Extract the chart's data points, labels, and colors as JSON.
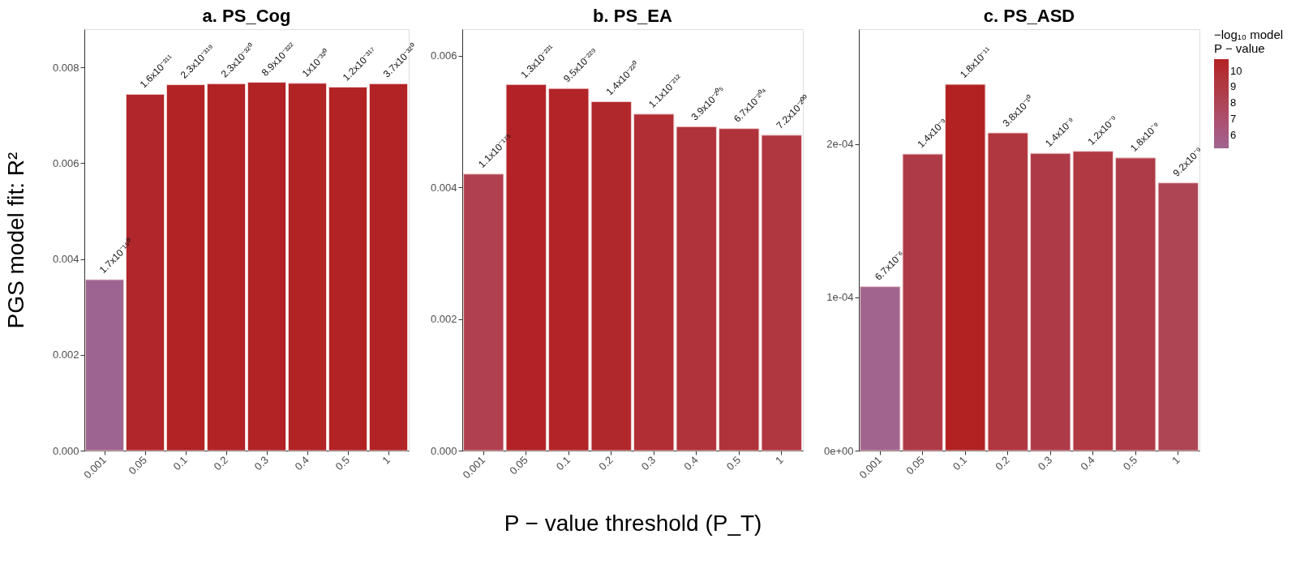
{
  "chart_data": [
    {
      "type": "bar",
      "title": "a. PS_Cog",
      "ylabel": "PGS model fit: R²",
      "categories": [
        "0.001",
        "0.05",
        "0.1",
        "0.2",
        "0.3",
        "0.4",
        "0.5",
        "1"
      ],
      "values": [
        0.00357,
        0.00744,
        0.00764,
        0.00766,
        0.00769,
        0.00767,
        0.00759,
        0.00766
      ],
      "colors": [
        "#9e6491",
        "#b0262a",
        "#b22325",
        "#b22325",
        "#b22325",
        "#b22325",
        "#b22325",
        "#b22325"
      ],
      "annotations": [
        {
          "text": "1.7x10⁻¹⁵⁰",
          "x": "0.001",
          "y": 0.00357
        },
        {
          "text": "1.6x10⁻³¹¹",
          "x": "0.05",
          "y": 0.00744
        },
        {
          "text": "2.3x10⁻³¹⁹",
          "x": "0.1",
          "y": 0.00764
        },
        {
          "text": "2.3x10⁻³²⁰",
          "x": "0.2",
          "y": 0.00766
        },
        {
          "text": "8.9x10⁻³²²",
          "x": "0.3",
          "y": 0.00769
        },
        {
          "text": "1x10⁻³²⁰",
          "x": "0.4",
          "y": 0.00767
        },
        {
          "text": "1.2x10⁻³¹⁷",
          "x": "0.5",
          "y": 0.00759
        },
        {
          "text": "3.7x10⁻³²⁰",
          "x": "1",
          "y": 0.00766
        }
      ],
      "ylim": [
        0,
        0.0088
      ],
      "yticks": [
        {
          "value": 0,
          "label": "0.000"
        },
        {
          "value": 0.002,
          "label": "0.002"
        },
        {
          "value": 0.004,
          "label": "0.004"
        },
        {
          "value": 0.006,
          "label": "0.006"
        },
        {
          "value": 0.008,
          "label": "0.008"
        }
      ],
      "grid": false
    },
    {
      "type": "bar",
      "title": "b. PS_EA",
      "xlabel": "P − value threshold (P_T)",
      "categories": [
        "0.001",
        "0.05",
        "0.1",
        "0.2",
        "0.3",
        "0.4",
        "0.5",
        "1"
      ],
      "values": [
        0.0042,
        0.00556,
        0.0055,
        0.0053,
        0.00511,
        0.00492,
        0.00489,
        0.00479
      ],
      "colors": [
        "#b04050",
        "#b22226",
        "#b22428",
        "#b0282c",
        "#b02e34",
        "#b0323a",
        "#b0323a",
        "#b03640"
      ],
      "annotations": [
        {
          "text": "1.1x10⁻¹⁷⁵",
          "x": "0.001",
          "y": 0.0042
        },
        {
          "text": "1.3x10⁻²³¹",
          "x": "0.05",
          "y": 0.00556
        },
        {
          "text": "9.5x10⁻²²⁹",
          "x": "0.1",
          "y": 0.0055
        },
        {
          "text": "1.4x10⁻²²⁰",
          "x": "0.2",
          "y": 0.0053
        },
        {
          "text": "1.1x10⁻²¹²",
          "x": "0.3",
          "y": 0.00511
        },
        {
          "text": "3.9x10⁻²⁰⁵",
          "x": "0.4",
          "y": 0.00492
        },
        {
          "text": "6.7x10⁻²⁰⁴",
          "x": "0.5",
          "y": 0.00489
        },
        {
          "text": "7.2x10⁻²⁰⁰",
          "x": "1",
          "y": 0.00479
        }
      ],
      "ylim": [
        0,
        0.0064
      ],
      "yticks": [
        {
          "value": 0,
          "label": "0.000"
        },
        {
          "value": 0.002,
          "label": "0.002"
        },
        {
          "value": 0.004,
          "label": "0.004"
        },
        {
          "value": 0.006,
          "label": "0.006"
        }
      ],
      "grid": false
    },
    {
      "type": "bar",
      "title": "c. PS_ASD",
      "categories": [
        "0.001",
        "0.05",
        "0.1",
        "0.2",
        "0.3",
        "0.4",
        "0.5",
        "1"
      ],
      "values": [
        0.000107,
        0.0001935,
        0.000239,
        0.0002073,
        0.000194,
        0.0001953,
        0.000191,
        0.0001747
      ],
      "cvalues": [
        5.17,
        8.85,
        10.74,
        9.42,
        8.85,
        8.92,
        8.74,
        8.04
      ],
      "colors": [
        "#a0648f",
        "#ae3a48",
        "#b22222",
        "#b0363f",
        "#ae3a48",
        "#b03944",
        "#ae3b48",
        "#ad4555"
      ],
      "annotations": [
        {
          "text": "6.7x10⁻⁶",
          "x": "0.001",
          "y": 0.000107
        },
        {
          "text": "1.4x10⁻⁹",
          "x": "0.05",
          "y": 0.0001935
        },
        {
          "text": "1.8x10⁻¹¹",
          "x": "0.1",
          "y": 0.000239
        },
        {
          "text": "3.8x10⁻¹⁰",
          "x": "0.2",
          "y": 0.0002073
        },
        {
          "text": "1.4x10⁻⁹",
          "x": "0.3",
          "y": 0.000194
        },
        {
          "text": "1.2x10⁻⁹",
          "x": "0.4",
          "y": 0.0001953
        },
        {
          "text": "1.8x10⁻⁹",
          "x": "0.5",
          "y": 0.000191
        },
        {
          "text": "9.2x10⁻⁹",
          "x": "1",
          "y": 0.0001747
        }
      ],
      "ylim": [
        0,
        0.000275
      ],
      "yticks": [
        {
          "value": 0,
          "label": "0e+00"
        },
        {
          "value": 0.0001,
          "label": "1e-04"
        },
        {
          "value": 0.0002,
          "label": "2e-04"
        }
      ],
      "clabel": "−log₁₀ model\nP − value",
      "clim": [
        5.17,
        10.74
      ],
      "cticks": [
        6,
        7,
        8,
        9,
        10
      ],
      "grid": false
    }
  ]
}
